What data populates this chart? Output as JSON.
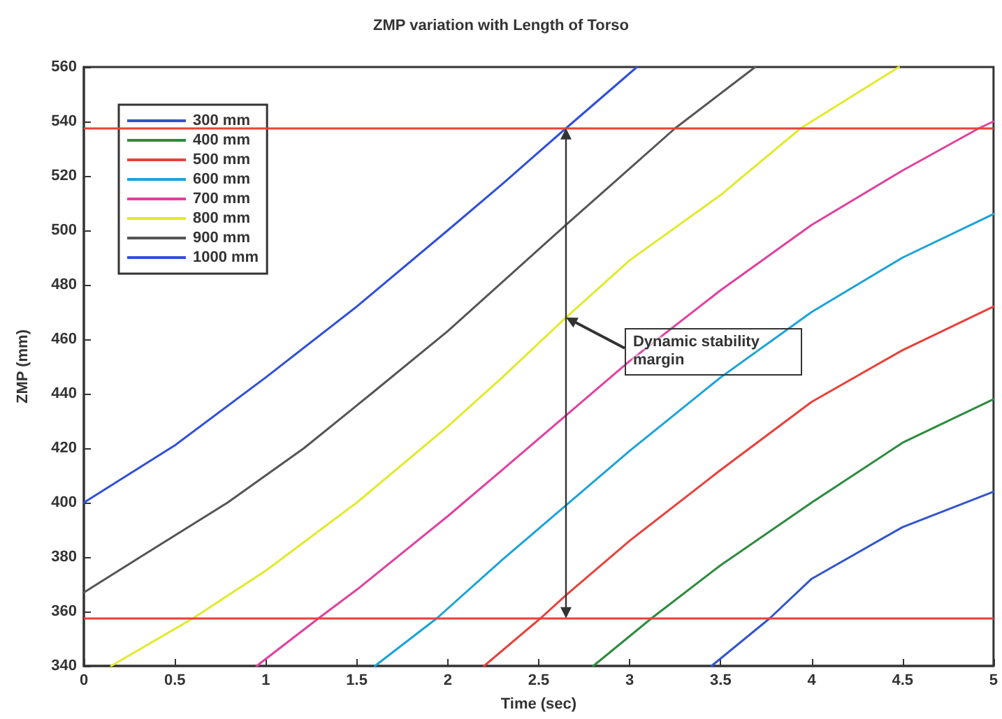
{
  "chart_data": {
    "type": "line",
    "title": "ZMP variation with Length of Torso",
    "xlabel": "Time (sec)",
    "ylabel": "ZMP (mm)",
    "xlim": [
      0,
      5
    ],
    "xticks": [
      0,
      0.5,
      1,
      1.5,
      2,
      2.5,
      3,
      3.5,
      4,
      4.5,
      5
    ],
    "ylim": [
      340,
      560
    ],
    "yticks": [
      340,
      360,
      380,
      400,
      420,
      440,
      460,
      480,
      500,
      520,
      540,
      560
    ],
    "grid": false,
    "legend": "top left",
    "marker": "none",
    "line_style": "solid",
    "series": [
      {
        "name": "300 mm",
        "color": "#3355cc",
        "x": [
          3.45,
          3.77,
          4,
          4.5,
          5
        ],
        "values": [
          340,
          357.5,
          372,
          391,
          404
        ]
      },
      {
        "name": "400 mm",
        "color": "#2e8b3e",
        "x": [
          2.8,
          3.12,
          3.5,
          4,
          4.5,
          5
        ],
        "values": [
          340,
          357.5,
          377,
          400,
          422,
          438
        ]
      },
      {
        "name": "500 mm",
        "color": "#e8413a",
        "x": [
          2.2,
          2.51,
          2.65,
          3,
          3.5,
          4,
          4.5,
          5
        ],
        "values": [
          340,
          357.5,
          366,
          386,
          412,
          437,
          456,
          472
        ]
      },
      {
        "name": "600 mm",
        "color": "#1aa3d9",
        "x": [
          1.6,
          1.94,
          2.3,
          2.65,
          3,
          3.5,
          4,
          4.5,
          5
        ],
        "values": [
          340,
          357.5,
          379,
          399,
          419,
          446,
          470,
          490,
          506
        ]
      },
      {
        "name": "700 mm",
        "color": "#e040a0",
        "x": [
          0.95,
          1.29,
          1.5,
          2,
          2.3,
          2.65,
          3,
          3.5,
          4,
          4.5,
          4.92,
          5
        ],
        "values": [
          340,
          357.5,
          368,
          395,
          412,
          432,
          452,
          478,
          502,
          522,
          537.5,
          540
        ]
      },
      {
        "name": "800 mm",
        "color": "#e2ea2a",
        "x": [
          0.15,
          0.6,
          1,
          1.5,
          2,
          2.3,
          2.65,
          3,
          3.5,
          3.94,
          4.48
        ],
        "values": [
          340,
          357.5,
          375,
          400,
          428,
          446,
          468,
          489,
          513,
          537.5,
          560
        ]
      },
      {
        "name": "900 mm",
        "color": "#555555",
        "x": [
          0,
          0.31,
          0.79,
          1.21,
          1.58,
          2,
          2.65,
          3.25,
          3.69
        ],
        "values": [
          367,
          380,
          400,
          420,
          440,
          463,
          502,
          537.5,
          560
        ]
      },
      {
        "name": "1000 mm",
        "color": "#2f4fd8",
        "x": [
          0,
          0.5,
          1,
          1.5,
          2,
          2.3,
          2.65,
          3.04
        ],
        "values": [
          400,
          421,
          446,
          472,
          500,
          517,
          537.5,
          560
        ]
      }
    ],
    "ref_lines": [
      {
        "axis": "y",
        "value": 537.5,
        "color": "#e8413a"
      },
      {
        "axis": "y",
        "value": 357.5,
        "color": "#e8413a"
      }
    ],
    "annotations": [
      {
        "text": "Dynamic stability margin",
        "x": 2.65,
        "y": 468
      }
    ]
  }
}
